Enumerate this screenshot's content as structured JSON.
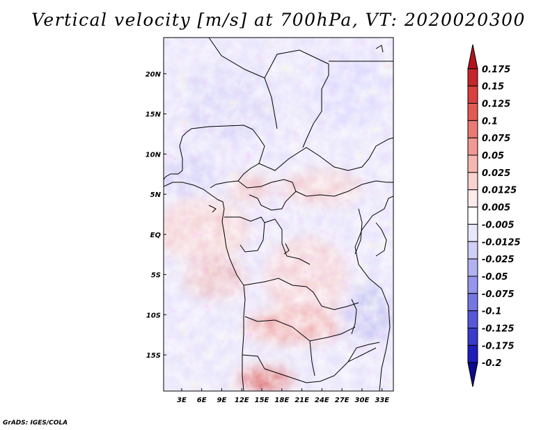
{
  "title": "Vertical velocity [m/s] at 700hPa, VT: 2020020300",
  "credit": "GrADS: IGES/COLA",
  "chart_data": {
    "type": "heatmap",
    "title": "Vertical velocity [m/s] at 700hPa, VT: 2020020300",
    "variable": "Vertical velocity",
    "units": "m/s",
    "level": "700hPa",
    "valid_time": "2020020300",
    "x_ticks": [
      "3E",
      "6E",
      "9E",
      "12E",
      "15E",
      "18E",
      "21E",
      "24E",
      "27E",
      "30E",
      "33E"
    ],
    "x_values": [
      3,
      6,
      9,
      12,
      15,
      18,
      21,
      24,
      27,
      30,
      33
    ],
    "y_ticks": [
      "20N",
      "15N",
      "10N",
      "5N",
      "EQ",
      "5S",
      "10S",
      "15S"
    ],
    "y_values": [
      20,
      15,
      10,
      5,
      0,
      -5,
      -10,
      -15
    ],
    "xlim": [
      0.3,
      34.7
    ],
    "ylim": [
      -19.5,
      24.5
    ],
    "colorbar": {
      "labels": [
        "0.175",
        "0.15",
        "0.125",
        "0.1",
        "0.075",
        "0.05",
        "0.025",
        "0.0125",
        "0.005",
        "-0.005",
        "-0.0125",
        "-0.025",
        "-0.05",
        "-0.075",
        "-0.1",
        "-0.125",
        "-0.175",
        "-0.2"
      ],
      "colors": [
        "#b0141c",
        "#c5262b",
        "#d8413f",
        "#e35a55",
        "#ea7a73",
        "#f19892",
        "#f6b7b2",
        "#f9d2cf",
        "#fcebea",
        "#ffffff",
        "#e8e8fb",
        "#cfcff7",
        "#b2b2f2",
        "#9595ec",
        "#7676e3",
        "#5757d9",
        "#3a3acd",
        "#1e1eb8",
        "#0c0c8c"
      ]
    }
  }
}
